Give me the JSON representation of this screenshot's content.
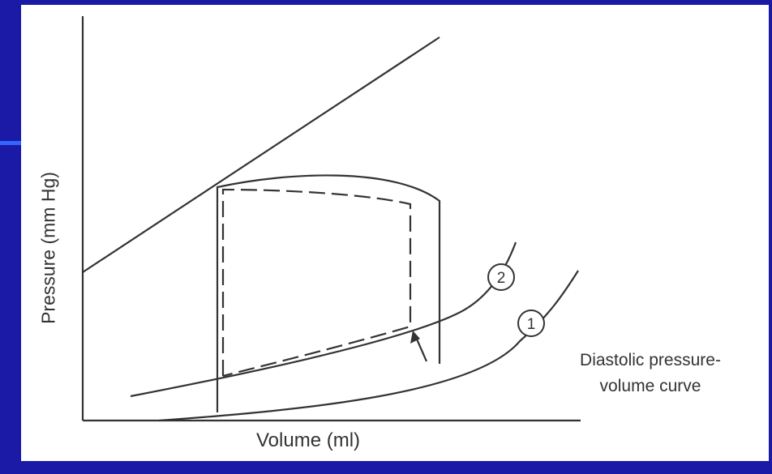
{
  "axes": {
    "y_label": "Pressure (mm Hg)",
    "x_label": "Volume (ml)"
  },
  "curves": {
    "curve_1_label": "1",
    "curve_2_label": "2",
    "diastolic_label_line1": "Diastolic pressure-",
    "diastolic_label_line2": "volume curve"
  },
  "colors": {
    "background": "#1a1aa6",
    "accent": "#3366ff",
    "panel": "#ffffff",
    "ink": "#333333"
  }
}
